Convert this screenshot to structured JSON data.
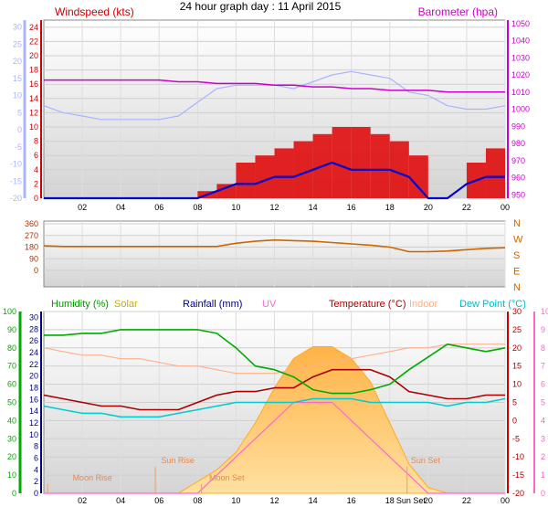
{
  "title": "24 hour graph day : 11 April 2015",
  "hour_labels": [
    "02",
    "04",
    "06",
    "08",
    "10",
    "12",
    "14",
    "16",
    "18",
    "20",
    "22",
    "00"
  ],
  "colors": {
    "wind": "#e00000",
    "gust_line": "#0000d0",
    "baro": "#cc00cc",
    "temp_left_axis": "#aab4ff",
    "wind_axis": "#cc0000",
    "baro_axis": "#cc00cc",
    "dir": "#cc6600",
    "humidity": "#00aa00",
    "solar": "#ffaa22",
    "rain": "#000080",
    "uv": "#ff66cc",
    "temperature": "#aa0000",
    "indoor": "#ffb08a",
    "dewpoint": "#00cccc"
  },
  "chart_data": [
    {
      "type": "line",
      "title": "",
      "labels": {
        "wind": "Windspeed (kts)",
        "baro": "Barometer (hpa)"
      },
      "wind_axis_ticks": [
        "0",
        "2",
        "4",
        "6",
        "8",
        "10",
        "12",
        "14",
        "16",
        "18",
        "20",
        "22",
        "24"
      ],
      "wind_ylim": [
        0,
        25
      ],
      "baro_axis_ticks": [
        "950",
        "960",
        "970",
        "980",
        "990",
        "1000",
        "1010",
        "1020",
        "1030",
        "1040",
        "1050"
      ],
      "baro_ylim": [
        948,
        1052
      ],
      "left_axis_ticks": [
        "-20",
        "-15",
        "-10",
        "-5",
        "0",
        "5",
        "10",
        "15",
        "20",
        "25",
        "30"
      ],
      "left_ylim": [
        -20,
        32
      ],
      "x_hours": [
        0,
        1,
        2,
        3,
        4,
        5,
        6,
        7,
        8,
        9,
        10,
        11,
        12,
        13,
        14,
        15,
        16,
        17,
        18,
        19,
        20,
        21,
        22,
        23,
        24
      ],
      "series": [
        {
          "name": "Windspeed (kts)",
          "values": [
            0,
            0,
            0,
            0,
            0,
            0,
            0,
            0,
            1,
            2,
            5,
            6,
            7,
            8,
            9,
            10,
            10,
            9,
            8,
            6,
            0,
            0,
            5,
            7,
            8
          ]
        },
        {
          "values": [
            0,
            0,
            0,
            0,
            0,
            0,
            0,
            0,
            0,
            1,
            2,
            2,
            3,
            3,
            4,
            5,
            4,
            4,
            4,
            3,
            0,
            0,
            2,
            3,
            3
          ]
        },
        {
          "name": "Barometer (hpa)",
          "values": [
            1017,
            1017,
            1017,
            1017,
            1017,
            1017,
            1017,
            1016,
            1016,
            1015,
            1015,
            1015,
            1014,
            1014,
            1013,
            1013,
            1012,
            1012,
            1011,
            1011,
            1011,
            1010,
            1010,
            1010,
            1010
          ]
        },
        {
          "values": [
            7,
            5,
            4,
            3,
            3,
            3,
            3,
            4,
            8,
            12,
            13,
            13,
            13,
            12,
            14,
            16,
            17,
            16,
            15,
            11,
            10,
            7,
            6,
            6,
            7
          ]
        }
      ]
    },
    {
      "type": "line",
      "title": "",
      "direction_ticks": [
        "360",
        "270",
        "180",
        "90",
        "0"
      ],
      "direction_letters": [
        "N",
        "W",
        "S",
        "E",
        "N"
      ],
      "ylim": [
        0,
        360
      ],
      "x_hours": [
        0,
        1,
        2,
        3,
        4,
        5,
        6,
        7,
        8,
        9,
        10,
        11,
        12,
        13,
        14,
        15,
        16,
        17,
        18,
        19,
        20,
        21,
        22,
        23,
        24
      ],
      "values": [
        190,
        185,
        185,
        185,
        185,
        185,
        185,
        185,
        185,
        185,
        210,
        225,
        235,
        230,
        225,
        215,
        205,
        195,
        180,
        145,
        145,
        150,
        160,
        170,
        175
      ]
    },
    {
      "type": "line",
      "title": "",
      "labels": {
        "humidity": "Humidity (%)",
        "solar": "Solar",
        "rain": "Rainfall (mm)",
        "uv": "UV",
        "temperature": "Temperature (°C)",
        "indoor": "Indoor",
        "dewpoint": "Dew Point (°C)"
      },
      "humidity_axis_ticks": [
        "0",
        "10",
        "20",
        "30",
        "40",
        "50",
        "60",
        "70",
        "80",
        "90",
        "100"
      ],
      "humidity_ylim": [
        0,
        100
      ],
      "rain_axis_ticks": [
        "0",
        "2",
        "4",
        "6",
        "8",
        "10",
        "12",
        "14",
        "16",
        "18",
        "20",
        "22",
        "24",
        "26",
        "28",
        "30"
      ],
      "temp_axis_ticks": [
        "-20",
        "-15",
        "-10",
        "-5",
        "0",
        "5",
        "10",
        "15",
        "20",
        "25",
        "30"
      ],
      "temp_ylim": [
        -20,
        30
      ],
      "uv_axis_ticks": [
        "0",
        "1",
        "2",
        "3",
        "4",
        "5",
        "6",
        "7",
        "8",
        "9",
        "10"
      ],
      "annotations": [
        "Moon Rise",
        "Sun Rise",
        "Moon Set",
        "Sun Set",
        "Sun Set"
      ],
      "x_hours": [
        0,
        1,
        2,
        3,
        4,
        5,
        6,
        7,
        8,
        9,
        10,
        11,
        12,
        13,
        14,
        15,
        16,
        17,
        18,
        19,
        20,
        21,
        22,
        23,
        24
      ],
      "series": [
        {
          "name": "Humidity (%)",
          "values": [
            87,
            87,
            88,
            88,
            90,
            90,
            90,
            90,
            90,
            88,
            80,
            70,
            68,
            64,
            57,
            55,
            55,
            57,
            60,
            68,
            75,
            82,
            80,
            78,
            80
          ]
        },
        {
          "name": "Temperature (°C)",
          "values": [
            7,
            6,
            5,
            4,
            4,
            3,
            3,
            3,
            5,
            7,
            8,
            8,
            9,
            9,
            12,
            14,
            14,
            14,
            12,
            8,
            7,
            6,
            6,
            7,
            7
          ]
        },
        {
          "name": "Indoor",
          "values": [
            20,
            19,
            18,
            18,
            17,
            17,
            16,
            15,
            15,
            14,
            13,
            13,
            13,
            14,
            15,
            16,
            17,
            18,
            19,
            20,
            20,
            21,
            21,
            21,
            21
          ]
        },
        {
          "name": "Dew Point (°C)",
          "values": [
            4,
            3,
            2,
            2,
            1,
            1,
            1,
            2,
            3,
            4,
            5,
            5,
            5,
            5,
            6,
            6,
            6,
            5,
            5,
            5,
            5,
            4,
            5,
            5,
            6
          ]
        },
        {
          "name": "Solar",
          "values": [
            0,
            0,
            0,
            0,
            0,
            0,
            0,
            0,
            2,
            4,
            7,
            12,
            18,
            23,
            25,
            25,
            23,
            19,
            12,
            5,
            1,
            0,
            0,
            0,
            0
          ]
        },
        {
          "name": "UV",
          "values": [
            0,
            0,
            0,
            0,
            0,
            0,
            0,
            0,
            0,
            1,
            2,
            3,
            4,
            5,
            5,
            5,
            4,
            3,
            2,
            1,
            0,
            0,
            0,
            0,
            0
          ]
        }
      ]
    }
  ]
}
